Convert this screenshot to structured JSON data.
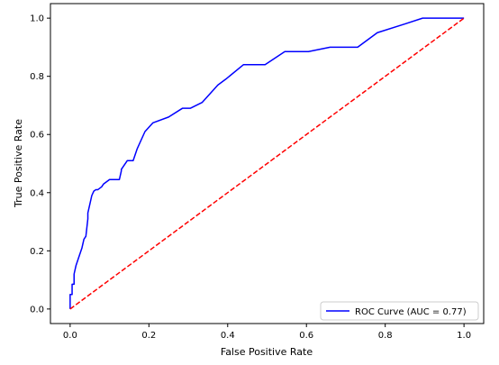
{
  "chart_data": {
    "type": "line",
    "title": "",
    "xlabel": "False Positive Rate",
    "ylabel": "True Positive Rate",
    "xlim": [
      -0.05,
      1.05
    ],
    "ylim": [
      -0.05,
      1.05
    ],
    "xticks": [
      0.0,
      0.2,
      0.4,
      0.6,
      0.8,
      1.0
    ],
    "yticks": [
      0.0,
      0.2,
      0.4,
      0.6,
      0.8,
      1.0
    ],
    "xtick_labels": [
      "0.0",
      "0.2",
      "0.4",
      "0.6",
      "0.8",
      "1.0"
    ],
    "ytick_labels": [
      "0.0",
      "0.2",
      "0.4",
      "0.6",
      "0.8",
      "1.0"
    ],
    "grid": false,
    "legend_position": "lower-right",
    "series": [
      {
        "name": "ROC Curve (AUC = 0.77)",
        "color": "#0000ff",
        "linestyle": "solid",
        "x": [
          0.0,
          0.0,
          0.005,
          0.005,
          0.01,
          0.01,
          0.015,
          0.02,
          0.025,
          0.03,
          0.035,
          0.04,
          0.045,
          0.045,
          0.05,
          0.055,
          0.06,
          0.065,
          0.07,
          0.08,
          0.085,
          0.09,
          0.1,
          0.11,
          0.125,
          0.13,
          0.13,
          0.145,
          0.16,
          0.17,
          0.19,
          0.21,
          0.25,
          0.285,
          0.305,
          0.335,
          0.375,
          0.395,
          0.44,
          0.495,
          0.545,
          0.605,
          0.66,
          0.73,
          0.78,
          0.85,
          0.895,
          0.93,
          1.0
        ],
        "y": [
          0.0,
          0.05,
          0.05,
          0.085,
          0.085,
          0.12,
          0.15,
          0.17,
          0.19,
          0.21,
          0.24,
          0.25,
          0.31,
          0.33,
          0.36,
          0.39,
          0.405,
          0.41,
          0.41,
          0.42,
          0.43,
          0.435,
          0.445,
          0.445,
          0.445,
          0.475,
          0.48,
          0.51,
          0.51,
          0.55,
          0.61,
          0.64,
          0.66,
          0.69,
          0.69,
          0.71,
          0.77,
          0.79,
          0.84,
          0.84,
          0.885,
          0.885,
          0.9,
          0.9,
          0.95,
          0.98,
          1.0,
          1.0,
          1.0
        ]
      },
      {
        "name": "",
        "color": "#ff0000",
        "linestyle": "dashed",
        "x": [
          0.0,
          1.0
        ],
        "y": [
          0.0,
          1.0
        ]
      }
    ]
  }
}
